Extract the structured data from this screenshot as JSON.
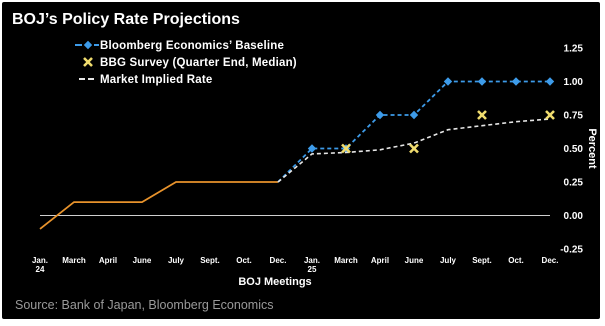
{
  "chart_data": {
    "type": "line",
    "title": "BOJ’s Policy Rate Projections",
    "xlabel": "BOJ Meetings",
    "ylabel": "Percent",
    "source": "Source: Bank of Japan, Bloomberg Economics",
    "categories": [
      [
        "Jan.",
        "24"
      ],
      [
        "March"
      ],
      [
        "April"
      ],
      [
        "June"
      ],
      [
        "July"
      ],
      [
        "Sept."
      ],
      [
        "Oct."
      ],
      [
        "Dec."
      ],
      [
        "Jan.",
        "25"
      ],
      [
        "March"
      ],
      [
        "April"
      ],
      [
        "June"
      ],
      [
        "July"
      ],
      [
        "Sept."
      ],
      [
        "Oct."
      ],
      [
        "Dec."
      ]
    ],
    "ylim": [
      -0.25,
      1.25
    ],
    "yticks": [
      "-0.25",
      "0.00",
      "0.25",
      "0.50",
      "0.75",
      "1.00",
      "1.25"
    ],
    "yticks_values": [
      -0.25,
      0.0,
      0.25,
      0.5,
      0.75,
      1.0,
      1.25
    ],
    "grid": false,
    "legend_position": "top-left",
    "series": [
      {
        "name": "",
        "style": "solid",
        "color": "#e8932c",
        "points": [
          [
            0,
            -0.1
          ],
          [
            1,
            0.1
          ],
          [
            2,
            0.1
          ],
          [
            3,
            0.1
          ],
          [
            4,
            0.25
          ],
          [
            5,
            0.25
          ],
          [
            6,
            0.25
          ],
          [
            7,
            0.25
          ]
        ]
      },
      {
        "name": "Bloomberg Economics’ Baseline",
        "style": "dashed-diamond",
        "color": "#3d9be9",
        "points": [
          [
            7,
            0.25
          ],
          [
            8,
            0.5
          ],
          [
            9,
            0.5
          ],
          [
            10,
            0.75
          ],
          [
            11,
            0.75
          ],
          [
            12,
            1.0
          ],
          [
            13,
            1.0
          ],
          [
            14,
            1.0
          ],
          [
            15,
            1.0
          ]
        ]
      },
      {
        "name": "BBG Survey (Quarter End, Median)",
        "style": "x-marker",
        "color": "#f0dc6e",
        "points": [
          [
            9,
            0.5
          ],
          [
            11,
            0.5
          ],
          [
            13,
            0.75
          ],
          [
            15,
            0.75
          ]
        ]
      },
      {
        "name": "Market Implied Rate",
        "style": "dashed",
        "color": "#e6e6e6",
        "points": [
          [
            7,
            0.25
          ],
          [
            8,
            0.46
          ],
          [
            9,
            0.47
          ],
          [
            10,
            0.49
          ],
          [
            11,
            0.54
          ],
          [
            12,
            0.64
          ],
          [
            13,
            0.67
          ],
          [
            14,
            0.7
          ],
          [
            15,
            0.72
          ]
        ]
      }
    ],
    "zero_line": 0.0
  }
}
